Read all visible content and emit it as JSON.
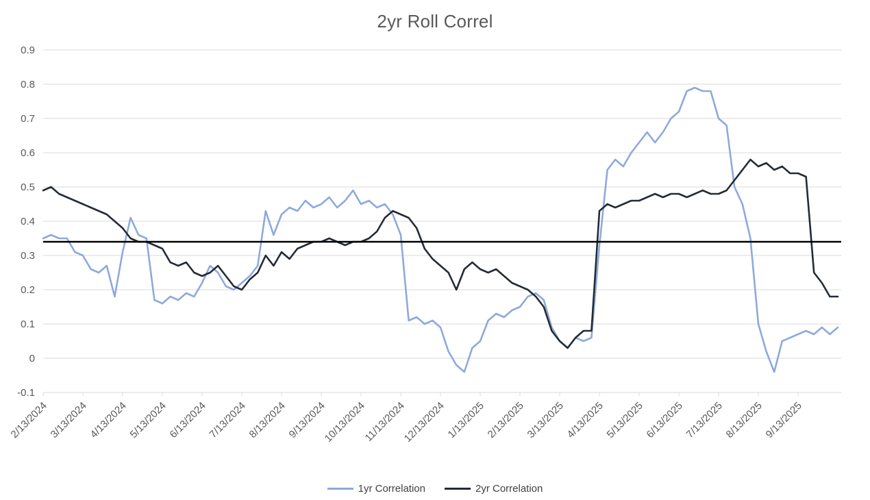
{
  "chart_data": {
    "type": "line",
    "title": "2yr Roll Correl",
    "xlabel": "",
    "ylabel": "",
    "ylim": [
      -0.1,
      0.9
    ],
    "grid": "horizontal",
    "grid_color": "#D9D9D9",
    "axis_label_color": "#595959",
    "legend_position": "bottom",
    "y_ticks": [
      0.9,
      0.8,
      0.7,
      0.6,
      0.5,
      0.4,
      0.3,
      0.2,
      0.1,
      0,
      -0.1
    ],
    "x_tick_labels": [
      "2/13/2024",
      "3/13/2024",
      "4/13/2024",
      "5/13/2024",
      "6/13/2024",
      "7/13/2024",
      "8/13/2024",
      "9/13/2024",
      "10/13/2024",
      "11/13/2024",
      "12/13/2024",
      "1/13/2025",
      "2/13/2025",
      "3/13/2025",
      "4/13/2025",
      "5/13/2025",
      "6/13/2025",
      "7/13/2025",
      "8/13/2025",
      "9/13/2025"
    ],
    "points_per_month": 5,
    "reference_line": {
      "value": 0.34,
      "color": "#000000"
    },
    "series": [
      {
        "name": "1yr Correlation",
        "color": "#8EA9DB",
        "stroke_width": 2.6,
        "values": [
          0.35,
          0.36,
          0.35,
          0.35,
          0.31,
          0.3,
          0.26,
          0.25,
          0.27,
          0.18,
          0.31,
          0.41,
          0.36,
          0.35,
          0.17,
          0.16,
          0.18,
          0.17,
          0.19,
          0.18,
          0.22,
          0.27,
          0.25,
          0.21,
          0.2,
          0.22,
          0.24,
          0.27,
          0.43,
          0.36,
          0.42,
          0.44,
          0.43,
          0.46,
          0.44,
          0.45,
          0.47,
          0.44,
          0.46,
          0.49,
          0.45,
          0.46,
          0.44,
          0.45,
          0.42,
          0.36,
          0.11,
          0.12,
          0.1,
          0.11,
          0.09,
          0.02,
          -0.02,
          -0.04,
          0.03,
          0.05,
          0.11,
          0.13,
          0.12,
          0.14,
          0.15,
          0.18,
          0.19,
          0.17,
          0.09,
          0.05,
          0.03,
          0.06,
          0.05,
          0.06,
          0.33,
          0.55,
          0.58,
          0.56,
          0.6,
          0.63,
          0.66,
          0.63,
          0.66,
          0.7,
          0.72,
          0.78,
          0.79,
          0.78,
          0.78,
          0.7,
          0.68,
          0.5,
          0.45,
          0.35,
          0.1,
          0.02,
          -0.04,
          0.05,
          0.06,
          0.07,
          0.08,
          0.07,
          0.09,
          0.07,
          0.09
        ]
      },
      {
        "name": "2yr Correlation",
        "color": "#222B35",
        "stroke_width": 2.6,
        "values": [
          0.49,
          0.5,
          0.48,
          0.47,
          0.46,
          0.45,
          0.44,
          0.43,
          0.42,
          0.4,
          0.38,
          0.35,
          0.34,
          0.34,
          0.33,
          0.32,
          0.28,
          0.27,
          0.28,
          0.25,
          0.24,
          0.25,
          0.27,
          0.24,
          0.21,
          0.2,
          0.23,
          0.25,
          0.3,
          0.27,
          0.31,
          0.29,
          0.32,
          0.33,
          0.34,
          0.34,
          0.35,
          0.34,
          0.33,
          0.34,
          0.34,
          0.35,
          0.37,
          0.41,
          0.43,
          0.42,
          0.41,
          0.38,
          0.32,
          0.29,
          0.27,
          0.25,
          0.2,
          0.26,
          0.28,
          0.26,
          0.25,
          0.26,
          0.24,
          0.22,
          0.21,
          0.2,
          0.18,
          0.15,
          0.08,
          0.05,
          0.03,
          0.06,
          0.08,
          0.08,
          0.43,
          0.45,
          0.44,
          0.45,
          0.46,
          0.46,
          0.47,
          0.48,
          0.47,
          0.48,
          0.48,
          0.47,
          0.48,
          0.49,
          0.48,
          0.48,
          0.49,
          0.52,
          0.55,
          0.58,
          0.56,
          0.57,
          0.55,
          0.56,
          0.54,
          0.54,
          0.53,
          0.25,
          0.22,
          0.18,
          0.18
        ]
      }
    ]
  }
}
